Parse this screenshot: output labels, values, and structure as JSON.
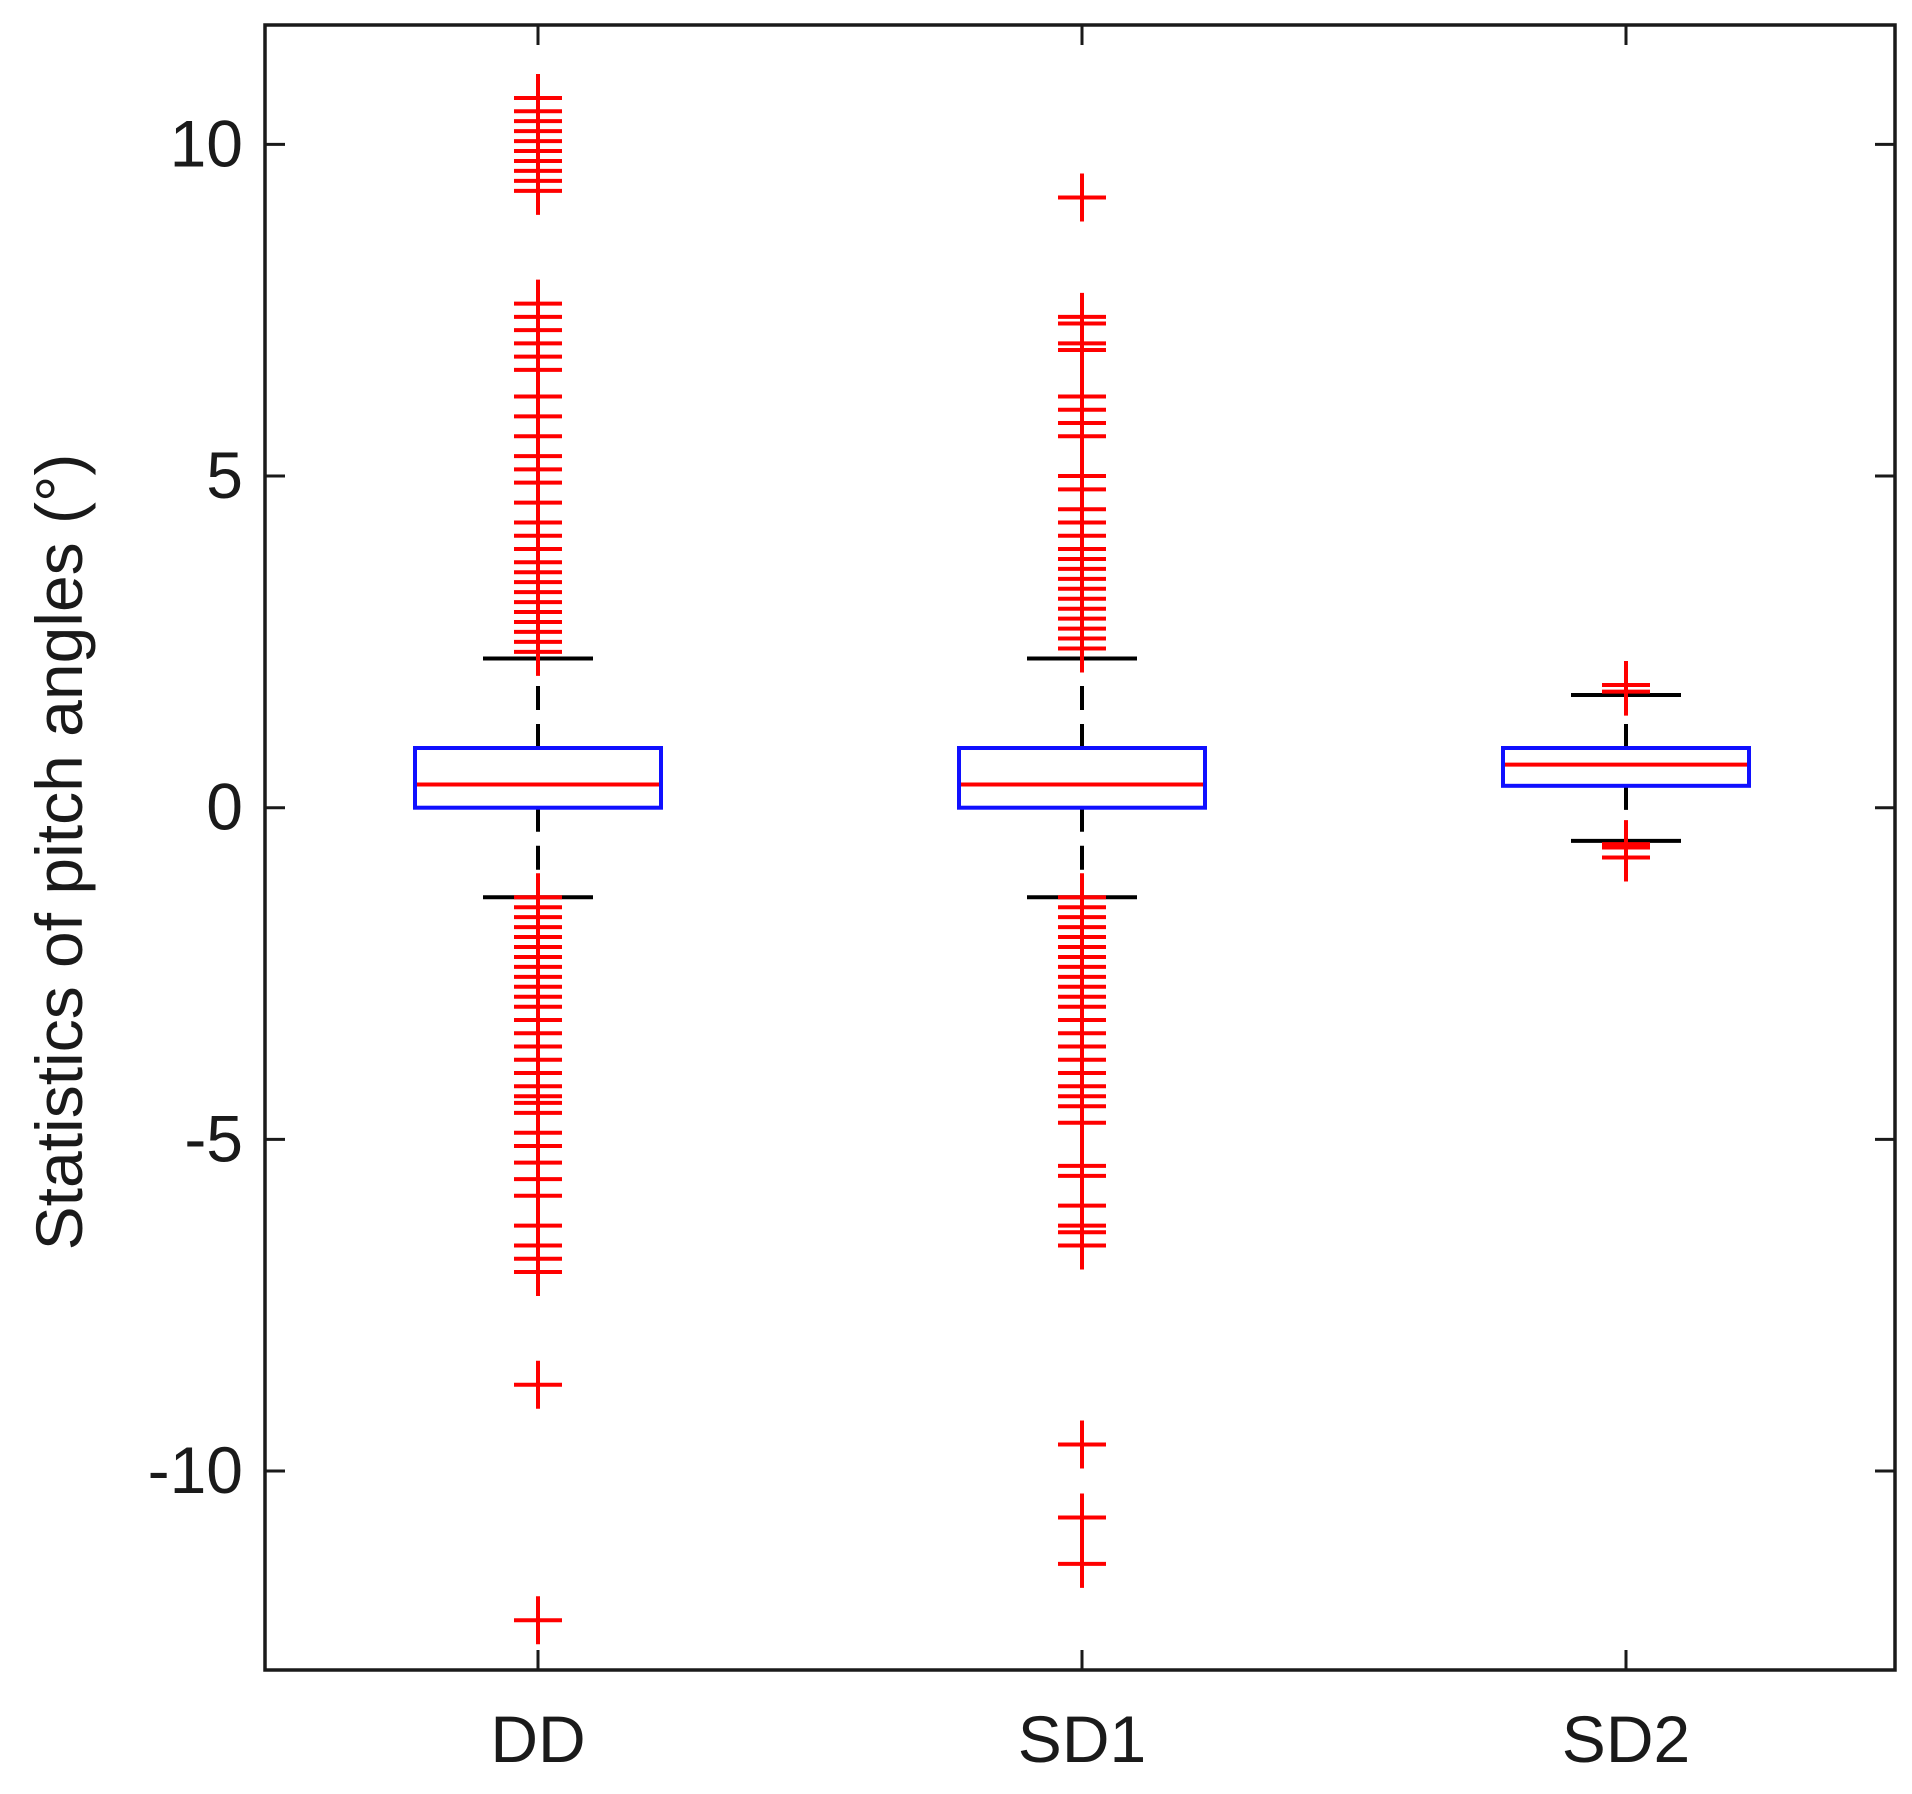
{
  "chart_data": {
    "type": "boxplot",
    "title": "",
    "xlabel": "",
    "ylabel": "Statistics of pitch angles (°)",
    "ylim": [
      -13.0,
      11.8
    ],
    "yticks": [
      10,
      5,
      0,
      -5,
      -10
    ],
    "ytick_labels": [
      "10",
      "5",
      "0",
      "-5",
      "-10"
    ],
    "categories": [
      "DD",
      "SD1",
      "SD2"
    ],
    "colors": {
      "box": "#1010ff",
      "median": "#ff0000",
      "whisker": "#000000",
      "outlier": "#ff0000",
      "axis": "#1a1a1a"
    },
    "boxes": [
      {
        "name": "DD",
        "q1": 0.0,
        "median": 0.35,
        "q3": 0.9,
        "whisker_low": -1.35,
        "whisker_high": 2.25,
        "outliers": [
          10.7,
          10.5,
          10.35,
          10.2,
          10.05,
          9.9,
          9.75,
          9.6,
          9.45,
          9.3,
          7.6,
          7.4,
          7.2,
          7.0,
          6.8,
          6.6,
          6.2,
          5.9,
          5.6,
          5.3,
          5.1,
          4.9,
          4.6,
          4.3,
          4.1,
          3.9,
          3.7,
          3.55,
          3.4,
          3.25,
          3.1,
          2.95,
          2.8,
          2.65,
          2.5,
          2.35,
          -1.35,
          -1.5,
          -1.65,
          -1.8,
          -1.95,
          -2.1,
          -2.25,
          -2.4,
          -2.55,
          -2.7,
          -2.85,
          -3.0,
          -3.2,
          -3.4,
          -3.6,
          -3.8,
          -4.0,
          -4.2,
          -4.35,
          -4.45,
          -4.6,
          -4.9,
          -5.1,
          -5.35,
          -5.6,
          -5.85,
          -6.3,
          -6.6,
          -6.8,
          -7.0,
          -8.7,
          -12.25
        ]
      },
      {
        "name": "SD1",
        "q1": 0.0,
        "median": 0.35,
        "q3": 0.9,
        "whisker_low": -1.35,
        "whisker_high": 2.25,
        "outliers": [
          9.2,
          7.4,
          7.3,
          7.0,
          6.9,
          6.2,
          6.0,
          5.8,
          5.6,
          5.0,
          4.8,
          4.5,
          4.3,
          4.1,
          3.9,
          3.75,
          3.6,
          3.45,
          3.3,
          3.15,
          3.0,
          2.85,
          2.7,
          2.55,
          2.4,
          -1.35,
          -1.5,
          -1.65,
          -1.8,
          -1.95,
          -2.1,
          -2.25,
          -2.4,
          -2.55,
          -2.7,
          -2.85,
          -3.0,
          -3.2,
          -3.4,
          -3.6,
          -3.8,
          -4.0,
          -4.2,
          -4.35,
          -4.5,
          -4.75,
          -5.4,
          -5.55,
          -6.0,
          -6.3,
          -6.4,
          -6.6,
          -9.6,
          -10.7,
          -11.4
        ]
      },
      {
        "name": "SD2",
        "q1": 0.33,
        "median": 0.65,
        "q3": 0.9,
        "whisker_low": -0.5,
        "whisker_high": 1.7,
        "outliers": [
          1.85,
          1.75,
          -0.55,
          -0.6,
          -0.75
        ]
      }
    ]
  }
}
